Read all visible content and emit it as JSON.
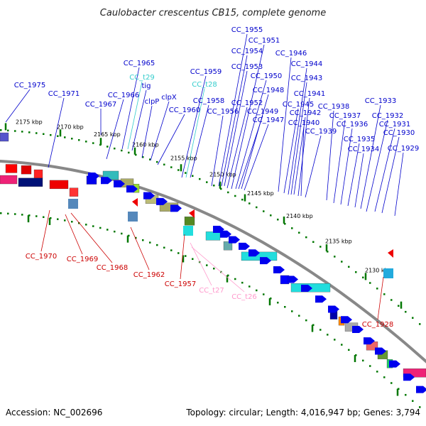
{
  "title": "Caulobacter crescentus CB15, complete genome",
  "footer": {
    "accession": "Accession: NC_002696",
    "topology": "Topology: circular; Length: 4,016,947 bp; Genes: 3,794"
  },
  "colors": {
    "forward_label": "#0000cc",
    "reverse_label": "#cc0000",
    "trna_forward_label": "#33cccc",
    "trna_reverse_label": "#ff99cc",
    "ruler_tick": "#007700",
    "backbone": "#888888"
  },
  "kbp_ticks": [
    "2175 kbp",
    "2170 kbp",
    "2165 kbp",
    "2160 kbp",
    "2155 kbp",
    "2150 kbp",
    "2145 kbp",
    "2140 kbp",
    "2135 kbp",
    "2130 kbp"
  ],
  "forward_labels": [
    "CC_1975",
    "CC_1971",
    "CC_1967",
    "CC_1966",
    "CC_1965",
    "CC_t29",
    "tig",
    "clpP",
    "clpX",
    "CC_1960",
    "CC_1959",
    "CC_t28",
    "CC_1958",
    "CC_1956",
    "CC_1955",
    "CC_1954",
    "CC_1953",
    "CC_1952",
    "CC_1951",
    "CC_1950",
    "CC_1949",
    "CC_1948",
    "CC_1947",
    "CC_1946",
    "CC_1945",
    "CC_1944",
    "CC_1943",
    "CC_1942",
    "CC_1941",
    "CC_1940",
    "CC_1939",
    "CC_1938",
    "CC_1937",
    "CC_1936",
    "CC_1935",
    "CC_1934",
    "CC_1933",
    "CC_1932",
    "CC_1931",
    "CC_1930",
    "CC_1929"
  ],
  "reverse_labels": [
    "CC_1970",
    "CC_1969",
    "CC_1968",
    "CC_1962",
    "CC_1957",
    "CC_t27",
    "CC_t26",
    "CC_1928"
  ]
}
